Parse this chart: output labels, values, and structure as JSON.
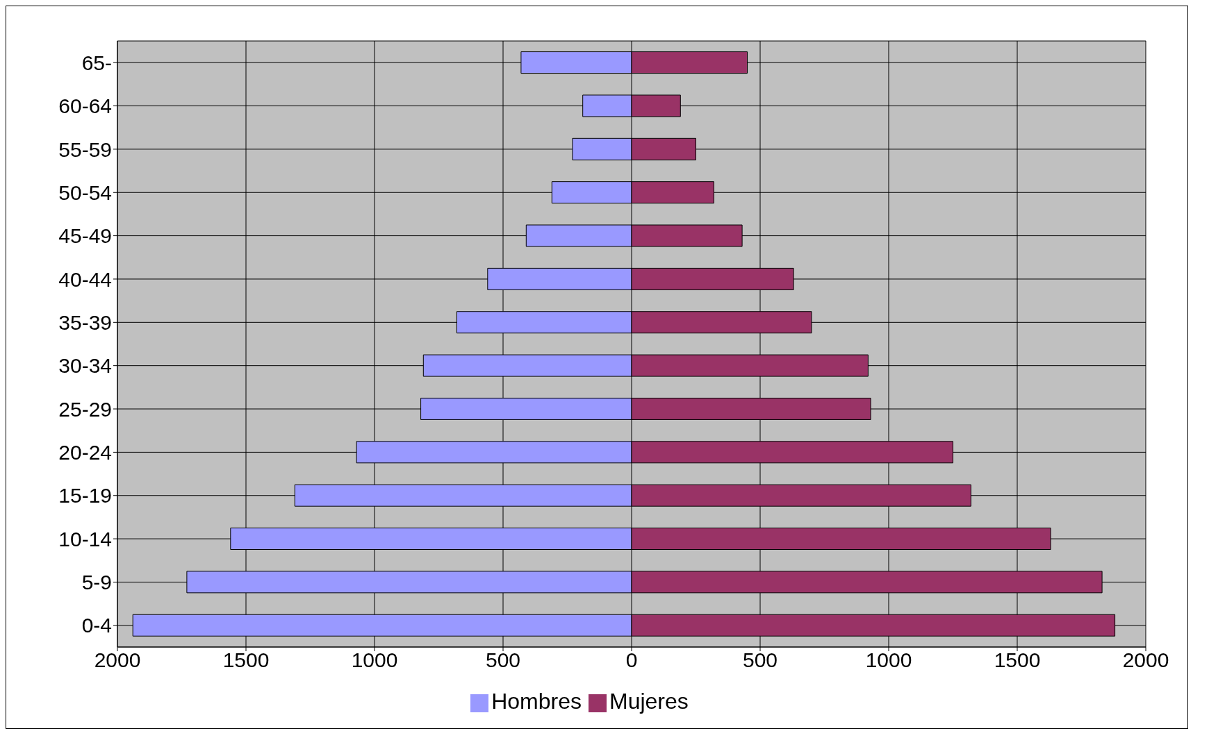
{
  "chart_data": {
    "type": "bar",
    "orientation": "horizontal",
    "stacked": true,
    "categories": [
      "65-",
      "60-64",
      "55-59",
      "50-54",
      "45-49",
      "40-44",
      "35-39",
      "30-34",
      "25-29",
      "20-24",
      "15-19",
      "10-14",
      "5-9",
      "0-4"
    ],
    "series": [
      {
        "name": "Hombres",
        "color": "#9999ff",
        "values": [
          -430,
          -190,
          -230,
          -310,
          -410,
          -560,
          -680,
          -810,
          -820,
          -1070,
          -1310,
          -1560,
          -1730,
          -1940
        ]
      },
      {
        "name": "Mujeres",
        "color": "#993366",
        "values": [
          450,
          190,
          250,
          320,
          430,
          630,
          700,
          920,
          930,
          1250,
          1320,
          1630,
          1830,
          1880
        ]
      }
    ],
    "xlim": [
      -2000,
      2000
    ],
    "xticks": [
      {
        "value": -2000,
        "label": "2000"
      },
      {
        "value": -1500,
        "label": "1500"
      },
      {
        "value": -1000,
        "label": "1000"
      },
      {
        "value": -500,
        "label": "500"
      },
      0,
      500,
      1000,
      1500,
      2000
    ],
    "grid": true,
    "legend": "bottom"
  }
}
